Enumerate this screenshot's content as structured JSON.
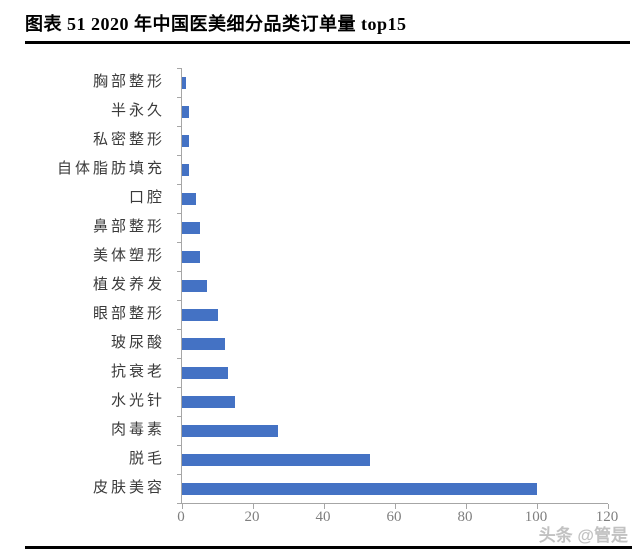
{
  "header": {
    "title": "图表 51 2020 年中国医美细分品类订单量 top15"
  },
  "watermark": {
    "text": "头条 @管是"
  },
  "chart_data": {
    "type": "bar",
    "orientation": "horizontal",
    "title": "图表 51 2020 年中国医美细分品类订单量 top15",
    "categories": [
      "胸部整形",
      "半永久",
      "私密整形",
      "自体脂肪填充",
      "口腔",
      "鼻部整形",
      "美体塑形",
      "植发养发",
      "眼部整形",
      "玻尿酸",
      "抗衰老",
      "水光针",
      "肉毒素",
      "脱毛",
      "皮肤美容"
    ],
    "values": [
      1,
      2,
      2,
      2,
      4,
      5,
      5,
      7,
      10,
      12,
      13,
      15,
      27,
      53,
      100
    ],
    "xlim": [
      0,
      120
    ],
    "x_ticks": [
      0,
      20,
      40,
      60,
      80,
      100,
      120
    ],
    "grid": false,
    "legend": null,
    "bar_color": "#4472C4",
    "axis_color": "#A6A6A6",
    "tick_label_color": "#7F7F7F",
    "category_label_color": "#3B3B3B"
  }
}
